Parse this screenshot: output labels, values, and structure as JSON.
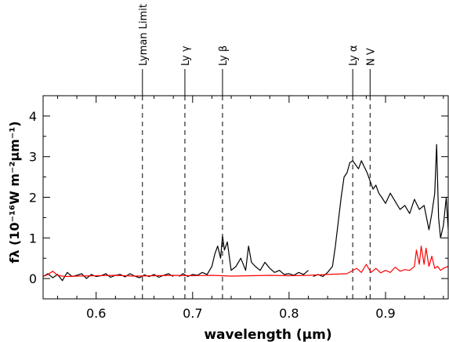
{
  "chart_data": {
    "type": "line",
    "title": "",
    "xlabel": "wavelength (μm)",
    "ylabel": "fλ (10⁻¹⁶W m⁻²μm⁻¹)",
    "xlim": [
      0.545,
      0.965
    ],
    "ylim": [
      -0.5,
      4.5
    ],
    "x_ticks": [
      {
        "value": 0.6,
        "label": "0.6"
      },
      {
        "value": 0.7,
        "label": "0.7"
      },
      {
        "value": 0.8,
        "label": "0.8"
      },
      {
        "value": 0.9,
        "label": "0.9"
      }
    ],
    "y_ticks": [
      {
        "value": 0,
        "label": "0"
      },
      {
        "value": 1,
        "label": "1"
      },
      {
        "value": 2,
        "label": "2"
      },
      {
        "value": 3,
        "label": "3"
      },
      {
        "value": 4,
        "label": "4"
      }
    ],
    "lines": [
      {
        "label": "Lyman Limit",
        "x": 0.648
      },
      {
        "label": "Ly γ",
        "x": 0.692
      },
      {
        "label": "Ly β",
        "x": 0.731
      },
      {
        "label": "Ly α",
        "x": 0.866
      },
      {
        "label": "N V",
        "x": 0.884
      }
    ],
    "series": [
      {
        "color": "#000000",
        "segments": [
          {
            "x": [
              0.545,
              0.55,
              0.555,
              0.56,
              0.565,
              0.57,
              0.575,
              0.58,
              0.585,
              0.59,
              0.595,
              0.6,
              0.605,
              0.61,
              0.615,
              0.62,
              0.625,
              0.63,
              0.635,
              0.64,
              0.645,
              0.65,
              0.655,
              0.66,
              0.665,
              0.67,
              0.675,
              0.68
            ],
            "y": [
              0.05,
              0.12,
              0.02,
              0.1,
              -0.05,
              0.15,
              0.05,
              0.08,
              0.12,
              0.0,
              0.1,
              0.05,
              0.07,
              0.12,
              0.03,
              0.08,
              0.1,
              0.04,
              0.12,
              0.06,
              0.02,
              0.09,
              0.05,
              0.1,
              0.03,
              0.08,
              0.12,
              0.05
            ]
          },
          {
            "x": [
              0.686,
              0.69,
              0.695,
              0.7,
              0.705,
              0.71,
              0.715,
              0.72,
              0.723,
              0.726,
              0.729,
              0.731,
              0.733,
              0.736,
              0.74,
              0.745,
              0.75,
              0.755,
              0.758,
              0.761,
              0.765,
              0.77,
              0.775,
              0.78,
              0.785,
              0.79,
              0.795,
              0.8,
              0.805,
              0.81,
              0.815,
              0.82
            ],
            "y": [
              0.05,
              0.12,
              0.05,
              0.1,
              0.08,
              0.15,
              0.1,
              0.3,
              0.6,
              0.8,
              0.5,
              1.05,
              0.7,
              0.9,
              0.2,
              0.3,
              0.5,
              0.2,
              0.8,
              0.4,
              0.3,
              0.2,
              0.4,
              0.25,
              0.15,
              0.2,
              0.1,
              0.12,
              0.08,
              0.15,
              0.1,
              0.2
            ]
          },
          {
            "x": [
              0.825,
              0.83,
              0.835,
              0.84,
              0.845,
              0.848,
              0.851,
              0.854,
              0.857,
              0.86,
              0.863,
              0.866,
              0.869,
              0.872,
              0.875,
              0.878,
              0.881,
              0.884,
              0.887,
              0.89,
              0.893,
              0.896,
              0.9,
              0.905,
              0.91,
              0.915,
              0.92,
              0.925,
              0.93,
              0.935,
              0.94,
              0.945,
              0.948,
              0.951,
              0.953,
              0.955,
              0.957,
              0.96,
              0.963,
              0.965
            ],
            "y": [
              0.05,
              0.1,
              0.05,
              0.15,
              0.3,
              0.8,
              1.4,
              2.0,
              2.5,
              2.6,
              2.85,
              2.9,
              2.8,
              2.7,
              2.9,
              2.75,
              2.6,
              2.4,
              2.2,
              2.3,
              2.1,
              2.0,
              1.85,
              2.1,
              1.9,
              1.7,
              1.8,
              1.6,
              1.95,
              1.7,
              1.8,
              1.2,
              1.6,
              2.1,
              3.3,
              1.5,
              1.0,
              1.3,
              2.0,
              1.2
            ]
          }
        ]
      },
      {
        "color": "#ff0000",
        "segments": [
          {
            "x": [
              0.545,
              0.55,
              0.555,
              0.56,
              0.565,
              0.57,
              0.58,
              0.6,
              0.62,
              0.64,
              0.66,
              0.68,
              0.7,
              0.72,
              0.74,
              0.76,
              0.78,
              0.8,
              0.82,
              0.84,
              0.86,
              0.87,
              0.875,
              0.88,
              0.885,
              0.89,
              0.895,
              0.9,
              0.905,
              0.91,
              0.915,
              0.92,
              0.925,
              0.93,
              0.932,
              0.935,
              0.937,
              0.94,
              0.942,
              0.945,
              0.948,
              0.951,
              0.954,
              0.957,
              0.96,
              0.965
            ],
            "y": [
              0.05,
              0.1,
              0.18,
              0.08,
              0.06,
              0.05,
              0.06,
              0.07,
              0.08,
              0.06,
              0.07,
              0.08,
              0.07,
              0.08,
              0.06,
              0.07,
              0.08,
              0.07,
              0.08,
              0.1,
              0.12,
              0.25,
              0.15,
              0.35,
              0.15,
              0.25,
              0.14,
              0.2,
              0.15,
              0.28,
              0.18,
              0.22,
              0.2,
              0.3,
              0.7,
              0.35,
              0.8,
              0.35,
              0.75,
              0.3,
              0.55,
              0.25,
              0.3,
              0.2,
              0.25,
              0.3
            ]
          }
        ]
      }
    ]
  }
}
